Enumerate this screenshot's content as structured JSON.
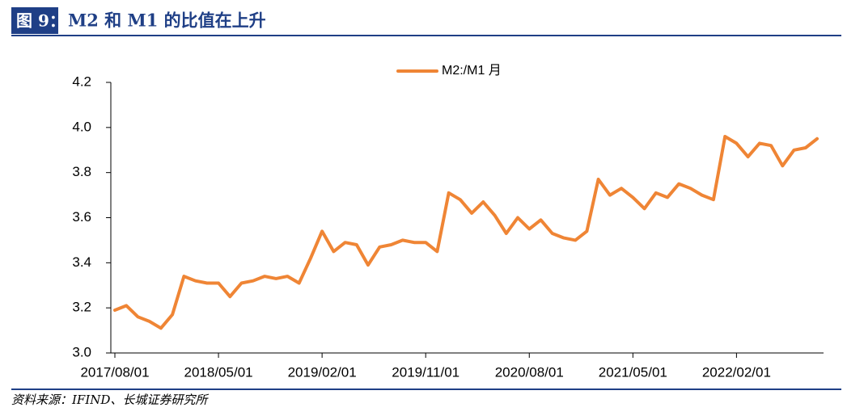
{
  "chart_data": {
    "type": "line",
    "figure_label": "图 9：",
    "title": "M2 和 M1 的比值在上升",
    "source": "资料来源：IFIND、长城证券研究所",
    "x": [
      "2017/08/01",
      "2017/09/01",
      "2017/10/01",
      "2017/11/01",
      "2017/12/01",
      "2018/01/01",
      "2018/02/01",
      "2018/03/01",
      "2018/04/01",
      "2018/05/01",
      "2018/06/01",
      "2018/07/01",
      "2018/08/01",
      "2018/09/01",
      "2018/10/01",
      "2018/11/01",
      "2018/12/01",
      "2019/01/01",
      "2019/02/01",
      "2019/03/01",
      "2019/04/01",
      "2019/05/01",
      "2019/06/01",
      "2019/07/01",
      "2019/08/01",
      "2019/09/01",
      "2019/10/01",
      "2019/11/01",
      "2019/12/01",
      "2020/01/01",
      "2020/02/01",
      "2020/03/01",
      "2020/04/01",
      "2020/05/01",
      "2020/06/01",
      "2020/07/01",
      "2020/08/01",
      "2020/09/01",
      "2020/10/01",
      "2020/11/01",
      "2020/12/01",
      "2021/01/01",
      "2021/02/01",
      "2021/03/01",
      "2021/04/01",
      "2021/05/01",
      "2021/06/01",
      "2021/07/01",
      "2021/08/01",
      "2021/09/01",
      "2021/10/01",
      "2021/11/01",
      "2021/12/01",
      "2022/01/01",
      "2022/02/01",
      "2022/03/01",
      "2022/04/01",
      "2022/05/01",
      "2022/06/01",
      "2022/07/01",
      "2022/08/01",
      "2022/09/01"
    ],
    "xticks": [
      "2017/08/01",
      "2018/05/01",
      "2019/02/01",
      "2019/11/01",
      "2020/08/01",
      "2021/05/01",
      "2022/02/01"
    ],
    "series": [
      {
        "name": "M2:/M1 月",
        "color": "#ef8535",
        "values": [
          3.19,
          3.21,
          3.16,
          3.14,
          3.11,
          3.17,
          3.34,
          3.32,
          3.31,
          3.31,
          3.25,
          3.31,
          3.32,
          3.34,
          3.33,
          3.34,
          3.31,
          3.42,
          3.54,
          3.45,
          3.49,
          3.48,
          3.39,
          3.47,
          3.48,
          3.5,
          3.49,
          3.49,
          3.45,
          3.71,
          3.68,
          3.62,
          3.67,
          3.61,
          3.53,
          3.6,
          3.55,
          3.59,
          3.53,
          3.51,
          3.5,
          3.54,
          3.77,
          3.7,
          3.73,
          3.69,
          3.64,
          3.71,
          3.69,
          3.75,
          3.73,
          3.7,
          3.68,
          3.96,
          3.93,
          3.87,
          3.93,
          3.92,
          3.83,
          3.9,
          3.91,
          3.95
        ]
      }
    ],
    "ylim": [
      3.0,
      4.2
    ],
    "yticks": [
      {
        "value": 3.0,
        "label": "3.0"
      },
      3.2,
      3.4,
      3.6,
      3.8,
      {
        "value": 4.0,
        "label": "4.0"
      },
      4.2
    ],
    "legend": "top"
  }
}
